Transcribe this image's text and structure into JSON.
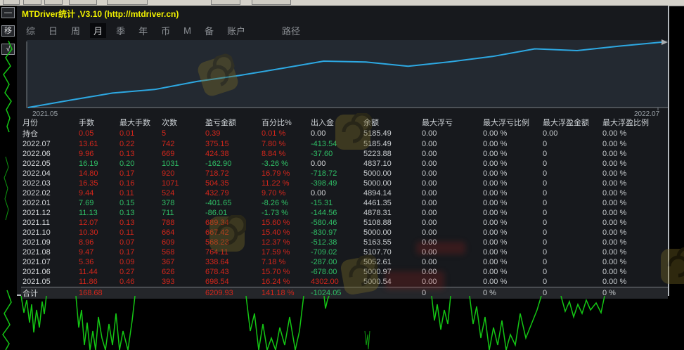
{
  "window": {
    "title": "MTDriver统计 ,V3.10 (http://mtdriver.cn)"
  },
  "toolbar_tabs": {
    "items": [
      {
        "label": "综",
        "active": false,
        "gap_before": false
      },
      {
        "label": "日",
        "active": false,
        "gap_before": false
      },
      {
        "label": "周",
        "active": false,
        "gap_before": false
      },
      {
        "label": "月",
        "active": true,
        "gap_before": false
      },
      {
        "label": "季",
        "active": false,
        "gap_before": false
      },
      {
        "label": "年",
        "active": false,
        "gap_before": false
      },
      {
        "label": "币",
        "active": false,
        "gap_before": false
      },
      {
        "label": "M",
        "active": false,
        "gap_before": false
      },
      {
        "label": "备",
        "active": false,
        "gap_before": false
      },
      {
        "label": "账户",
        "active": false,
        "gap_before": false
      },
      {
        "label": "路径",
        "active": false,
        "gap_before": true
      }
    ]
  },
  "sidebar": {
    "buttons": [
      {
        "name": "minimize-button",
        "label": "—"
      },
      {
        "name": "move-button",
        "label": "移"
      },
      {
        "name": "check-button",
        "label": "√"
      }
    ]
  },
  "chart_data": {
    "type": "line",
    "title": "",
    "legend": [],
    "grid": false,
    "axis_labels": [
      "2021.05",
      "2022.07"
    ],
    "months": [
      "2021.05",
      "2021.06",
      "2021.07",
      "2021.08",
      "2021.09",
      "2021.10",
      "2021.11",
      "2021.12",
      "2022.01",
      "2022.02",
      "2022.03",
      "2022.04",
      "2022.05",
      "2022.06",
      "2022.07"
    ],
    "monthly_profit": [
      698.54,
      678.43,
      338.64,
      764.11,
      568.23,
      667.42,
      689.34,
      -86.01,
      -401.65,
      432.79,
      504.35,
      718.72,
      -162.9,
      424.38,
      375.15
    ],
    "cumulative_profit": [
      698.54,
      1376.97,
      1715.61,
      2479.72,
      3047.95,
      3715.37,
      4404.71,
      4318.7,
      3917.05,
      4349.84,
      4854.19,
      5572.91,
      5410.01,
      5834.39,
      6209.93
    ],
    "start_value": 0,
    "ylim": [
      0,
      6210
    ],
    "line_color": "#2da8e2"
  },
  "table": {
    "columns": [
      "月份",
      "手数",
      "最大手数",
      "次数",
      "盈亏金额",
      "百分比%",
      "出入金",
      "余额",
      "最大浮亏",
      "最大浮亏比例",
      "最大浮盈金额",
      "最大浮盈比例"
    ],
    "rows": [
      {
        "label": "持仓",
        "cells": [
          "0.05",
          "0.01",
          "5",
          "0.39",
          "0.01 %",
          "0.00",
          "5185.49",
          "0.00",
          "0.00 %",
          "0.00",
          "0.00 %"
        ],
        "colors": "rrrrrwzzzzz",
        "total": false
      },
      {
        "label": "2022.07",
        "cells": [
          "13.61",
          "0.22",
          "742",
          "375.15",
          "7.80 %",
          "-413.54",
          "5185.49",
          "0.00",
          "0.00 %",
          "0",
          "0.00 %"
        ],
        "colors": "rrrrrgzzzzz",
        "total": false
      },
      {
        "label": "2022.06",
        "cells": [
          "9.96",
          "0.13",
          "669",
          "424.38",
          "8.84 %",
          "-37.60",
          "5223.88",
          "0.00",
          "0.00 %",
          "0",
          "0.00 %"
        ],
        "colors": "rrrrrgzzzzz",
        "total": false
      },
      {
        "label": "2022.05",
        "cells": [
          "16.19",
          "0.20",
          "1031",
          "-162.90",
          "-3.26 %",
          "0.00",
          "4837.10",
          "0.00",
          "0.00 %",
          "0",
          "0.00 %"
        ],
        "colors": "gggggwzzzzz",
        "total": false
      },
      {
        "label": "2022.04",
        "cells": [
          "14.80",
          "0.17",
          "920",
          "718.72",
          "16.79 %",
          "-718.72",
          "5000.00",
          "0.00",
          "0.00 %",
          "0",
          "0.00 %"
        ],
        "colors": "rrrrrgzzzzz",
        "total": false
      },
      {
        "label": "2022.03",
        "cells": [
          "16.35",
          "0.16",
          "1071",
          "504.35",
          "11.22 %",
          "-398.49",
          "5000.00",
          "0.00",
          "0.00 %",
          "0",
          "0.00 %"
        ],
        "colors": "rrrrrgzzzzz",
        "total": false
      },
      {
        "label": "2022.02",
        "cells": [
          "9.44",
          "0.11",
          "524",
          "432.79",
          "9.70 %",
          "0.00",
          "4894.14",
          "0.00",
          "0.00 %",
          "0",
          "0.00 %"
        ],
        "colors": "rrrrrwzzzzz",
        "total": false
      },
      {
        "label": "2022.01",
        "cells": [
          "7.69",
          "0.15",
          "378",
          "-401.65",
          "-8.26 %",
          "-15.31",
          "4461.35",
          "0.00",
          "0.00 %",
          "0",
          "0.00 %"
        ],
        "colors": "ggggggzzzzz",
        "total": false
      },
      {
        "label": "2021.12",
        "cells": [
          "11.13",
          "0.13",
          "711",
          "-86.01",
          "-1.73 %",
          "-144.56",
          "4878.31",
          "0.00",
          "0.00 %",
          "0",
          "0.00 %"
        ],
        "colors": "ggggggzzzzz",
        "total": false
      },
      {
        "label": "2021.11",
        "cells": [
          "12.07",
          "0.13",
          "788",
          "689.34",
          "15.60 %",
          "-580.46",
          "5108.88",
          "0.00",
          "0.00 %",
          "0",
          "0.00 %"
        ],
        "colors": "rrrrrgzzzzz",
        "total": false
      },
      {
        "label": "2021.10",
        "cells": [
          "10.30",
          "0.11",
          "664",
          "667.42",
          "15.40 %",
          "-830.97",
          "5000.00",
          "0.00",
          "0.00 %",
          "0",
          "0.00 %"
        ],
        "colors": "rrrrrgzzzzz",
        "total": false
      },
      {
        "label": "2021.09",
        "cells": [
          "8.96",
          "0.07",
          "609",
          "568.23",
          "12.37 %",
          "-512.38",
          "5163.55",
          "0.00",
          "0.00 %",
          "0",
          "0.00 %"
        ],
        "colors": "rrrrrgzzzzz",
        "total": false
      },
      {
        "label": "2021.08",
        "cells": [
          "9.47",
          "0.17",
          "568",
          "764.11",
          "17.59 %",
          "-709.02",
          "5107.70",
          "0.00",
          "0.00 %",
          "0",
          "0.00 %"
        ],
        "colors": "rrrrrgzzzzz",
        "total": false
      },
      {
        "label": "2021.07",
        "cells": [
          "5.36",
          "0.09",
          "367",
          "338.64",
          "7.18 %",
          "-287.00",
          "5052.61",
          "0.00",
          "0.00 %",
          "0",
          "0.00 %"
        ],
        "colors": "rrrrrgzzzzz",
        "total": false
      },
      {
        "label": "2021.06",
        "cells": [
          "11.44",
          "0.27",
          "626",
          "678.43",
          "15.70 %",
          "-678.00",
          "5000.97",
          "0.00",
          "0.00 %",
          "0",
          "0.00 %"
        ],
        "colors": "rrrrrgzzzzz",
        "total": false
      },
      {
        "label": "2021.05",
        "cells": [
          "11.86",
          "0.46",
          "393",
          "698.54",
          "16.24 %",
          "4302.00",
          "5000.54",
          "0.00",
          "0.00 %",
          "0",
          "0.00 %"
        ],
        "colors": "rrrrrrzzzzz",
        "total": false
      },
      {
        "label": "合计",
        "cells": [
          "168.68",
          "",
          "",
          "6209.93",
          "141.18 %",
          "-1024.05",
          "",
          "0",
          "0 %",
          "0",
          "0 %"
        ],
        "colors": "rwwrrgzzzzz",
        "total": true
      }
    ]
  },
  "colors": {
    "gain_red": "#d4261b",
    "loss_green": "#2fbf66",
    "equity_line_blue": "#2da8e2",
    "title_yellow": "#f2f200",
    "panel_bg": "#17191d",
    "chart_bg": "#232931"
  }
}
